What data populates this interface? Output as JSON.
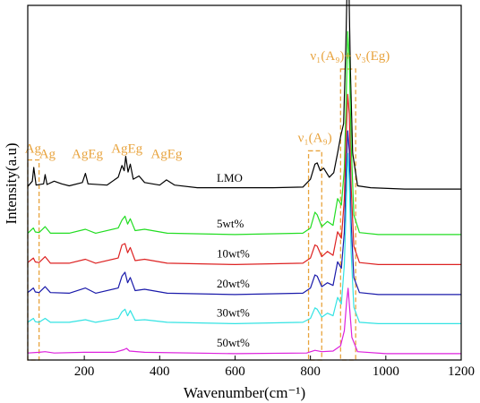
{
  "chart_data": {
    "type": "line",
    "xlabel": "Wavenumber(cm⁻¹)",
    "ylabel": "Intensity(a.u)",
    "xlim": [
      50,
      1200
    ],
    "xticks": [
      "200",
      "400",
      "600",
      "800",
      "1000",
      "1200"
    ],
    "yticks": "none",
    "grid": false,
    "legend": "none",
    "stacked_offsets": true,
    "series": [
      {
        "name": "LMO",
        "color": "#000000",
        "baseline": 0.94,
        "x": [
          50,
          62,
          66,
          72,
          92,
          96,
          101,
          120,
          140,
          160,
          195,
          203,
          210,
          260,
          290,
          300,
          306,
          310,
          316,
          322,
          330,
          345,
          360,
          400,
          418,
          440,
          500,
          600,
          700,
          780,
          800,
          812,
          818,
          826,
          835,
          850,
          862,
          872,
          880,
          888,
          894,
          899,
          902,
          906,
          912,
          925,
          960,
          1050,
          1150,
          1200
        ],
        "values": [
          0.04,
          0.12,
          0.33,
          0.06,
          0.08,
          0.22,
          0.07,
          0.12,
          0.08,
          0.05,
          0.1,
          0.24,
          0.08,
          0.06,
          0.18,
          0.36,
          0.28,
          0.5,
          0.26,
          0.38,
          0.15,
          0.2,
          0.1,
          0.06,
          0.14,
          0.06,
          0.02,
          0.02,
          0.02,
          0.03,
          0.15,
          0.38,
          0.4,
          0.28,
          0.32,
          0.18,
          0.25,
          0.55,
          0.8,
          1.0,
          2.2,
          3.55,
          3.1,
          1.8,
          0.55,
          0.05,
          0.02,
          0.0,
          0.0,
          0.0
        ]
      },
      {
        "name": "5wt%",
        "color": "#22dd22",
        "baseline": 0.69,
        "x": [
          50,
          65,
          70,
          80,
          96,
          110,
          160,
          203,
          230,
          290,
          300,
          308,
          315,
          322,
          335,
          360,
          420,
          600,
          780,
          800,
          812,
          818,
          830,
          845,
          860,
          872,
          882,
          890,
          895,
          899,
          903,
          908,
          915,
          930,
          980,
          1100,
          1200
        ],
        "values": [
          0.02,
          0.1,
          0.04,
          0.03,
          0.12,
          0.02,
          0.02,
          0.08,
          0.02,
          0.1,
          0.22,
          0.28,
          0.16,
          0.24,
          0.06,
          0.08,
          0.02,
          0.0,
          0.02,
          0.1,
          0.34,
          0.3,
          0.12,
          0.2,
          0.14,
          0.55,
          0.45,
          1.0,
          2.1,
          3.1,
          2.7,
          1.4,
          0.3,
          0.03,
          0.0,
          0.0,
          0.0
        ]
      },
      {
        "name": "10wt%",
        "color": "#dd2222",
        "baseline": 0.525,
        "x": [
          50,
          65,
          70,
          80,
          96,
          110,
          160,
          203,
          230,
          290,
          300,
          308,
          315,
          322,
          335,
          360,
          420,
          600,
          780,
          800,
          812,
          818,
          830,
          845,
          860,
          872,
          882,
          890,
          895,
          899,
          903,
          908,
          915,
          930,
          980,
          1100,
          1200
        ],
        "values": [
          0.03,
          0.1,
          0.04,
          0.03,
          0.12,
          0.02,
          0.02,
          0.08,
          0.02,
          0.1,
          0.3,
          0.32,
          0.18,
          0.26,
          0.06,
          0.08,
          0.02,
          0.0,
          0.02,
          0.1,
          0.3,
          0.28,
          0.12,
          0.2,
          0.14,
          0.5,
          0.4,
          1.0,
          2.0,
          2.6,
          2.3,
          1.2,
          0.28,
          0.03,
          0.0,
          0.0,
          0.0
        ]
      },
      {
        "name": "20wt%",
        "color": "#1a1aaa",
        "baseline": 0.36,
        "x": [
          50,
          65,
          70,
          80,
          96,
          110,
          160,
          203,
          230,
          290,
          300,
          308,
          315,
          322,
          335,
          360,
          420,
          600,
          780,
          800,
          812,
          818,
          830,
          845,
          860,
          872,
          882,
          890,
          895,
          899,
          903,
          908,
          915,
          930,
          980,
          1100,
          1200
        ],
        "values": [
          0.03,
          0.1,
          0.04,
          0.03,
          0.12,
          0.03,
          0.02,
          0.1,
          0.02,
          0.1,
          0.28,
          0.34,
          0.18,
          0.26,
          0.06,
          0.08,
          0.02,
          0.0,
          0.02,
          0.1,
          0.3,
          0.28,
          0.12,
          0.18,
          0.14,
          0.5,
          0.4,
          0.95,
          1.9,
          2.5,
          2.2,
          1.1,
          0.26,
          0.03,
          0.0,
          0.0,
          0.0
        ]
      },
      {
        "name": "30wt%",
        "color": "#33e3e3",
        "baseline": 0.2,
        "x": [
          50,
          65,
          70,
          80,
          96,
          110,
          160,
          203,
          230,
          290,
          300,
          308,
          315,
          322,
          335,
          360,
          420,
          600,
          780,
          800,
          812,
          818,
          830,
          845,
          860,
          872,
          882,
          890,
          895,
          899,
          903,
          908,
          915,
          930,
          980,
          1100,
          1200
        ],
        "values": [
          0.02,
          0.08,
          0.03,
          0.02,
          0.08,
          0.02,
          0.02,
          0.06,
          0.02,
          0.08,
          0.18,
          0.22,
          0.12,
          0.2,
          0.05,
          0.06,
          0.02,
          0.0,
          0.02,
          0.08,
          0.24,
          0.22,
          0.1,
          0.16,
          0.12,
          0.4,
          0.3,
          0.9,
          1.8,
          2.6,
          2.2,
          1.1,
          0.25,
          0.02,
          0.0,
          0.0,
          0.0
        ]
      },
      {
        "name": "50wt%",
        "color": "#dd22dd",
        "baseline": 0.035,
        "x": [
          50,
          80,
          96,
          120,
          200,
          280,
          305,
          312,
          320,
          360,
          600,
          790,
          812,
          830,
          860,
          880,
          890,
          896,
          900,
          904,
          910,
          925,
          1000,
          1200
        ],
        "values": [
          0.01,
          0.02,
          0.03,
          0.01,
          0.02,
          0.02,
          0.06,
          0.08,
          0.04,
          0.02,
          0.0,
          0.01,
          0.05,
          0.03,
          0.04,
          0.12,
          0.35,
          0.8,
          1.0,
          0.7,
          0.25,
          0.03,
          0.0,
          0.0
        ]
      }
    ],
    "annotations": [
      {
        "text": "Ag",
        "x": 64,
        "y": 1.14
      },
      {
        "text": "Ag",
        "x": 102,
        "y": 1.11
      },
      {
        "text": "AgEg",
        "x": 208,
        "y": 1.11
      },
      {
        "text": "AgEg",
        "x": 313,
        "y": 1.14
      },
      {
        "text": "AgEg",
        "x": 418,
        "y": 1.11
      },
      {
        "text": "ν₁(A₉)",
        "x": 812,
        "y": 1.2
      },
      {
        "text": "ν₁(A₉)+ ν₃(Eg)",
        "x": 905,
        "y": 1.65
      }
    ],
    "highlight_boxes": [
      {
        "x_range": [
          50,
          80
        ],
        "y_range": [
          0.0,
          1.1
        ]
      },
      {
        "x_range": [
          795,
          830
        ],
        "y_range": [
          0.0,
          1.15
        ]
      },
      {
        "x_range": [
          880,
          920
        ],
        "y_range": [
          0.0,
          1.6
        ]
      }
    ]
  }
}
